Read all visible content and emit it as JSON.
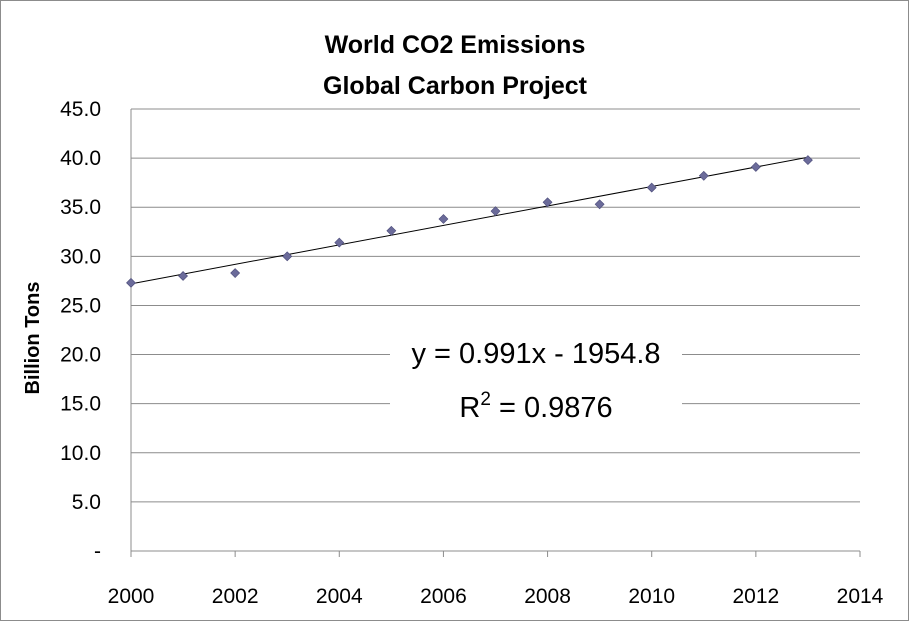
{
  "chart_data": {
    "type": "scatter",
    "title": "World CO2 Emissions",
    "subtitle": "Global Carbon Project",
    "xlabel": "",
    "ylabel": "Billion Tons",
    "xlim": [
      2000,
      2014
    ],
    "ylim": [
      0,
      45
    ],
    "x_ticks": [
      "2000",
      "2002",
      "2004",
      "2006",
      "2008",
      "2010",
      "2012",
      "2014"
    ],
    "y_ticks": [
      "-",
      "5.0",
      "10.0",
      "15.0",
      "20.0",
      "25.0",
      "30.0",
      "35.0",
      "40.0",
      "45.0"
    ],
    "grid": true,
    "series": [
      {
        "name": "Emissions",
        "color": "#6b6b9a",
        "x": [
          2000,
          2001,
          2002,
          2003,
          2004,
          2005,
          2006,
          2007,
          2008,
          2009,
          2010,
          2011,
          2012,
          2013
        ],
        "y": [
          27.3,
          28.0,
          28.3,
          30.0,
          31.4,
          32.6,
          33.8,
          34.6,
          35.5,
          35.3,
          37.0,
          38.2,
          39.1,
          39.8
        ]
      }
    ],
    "trendline": {
      "type": "linear",
      "slope": 0.991,
      "intercept": -1954.8,
      "x_range": [
        2000,
        2013
      ],
      "equation_label": "y = 0.991x - 1954.8",
      "r2_prefix": "R",
      "r2_superscript": "2",
      "r2_suffix": " = 0.9876"
    }
  }
}
